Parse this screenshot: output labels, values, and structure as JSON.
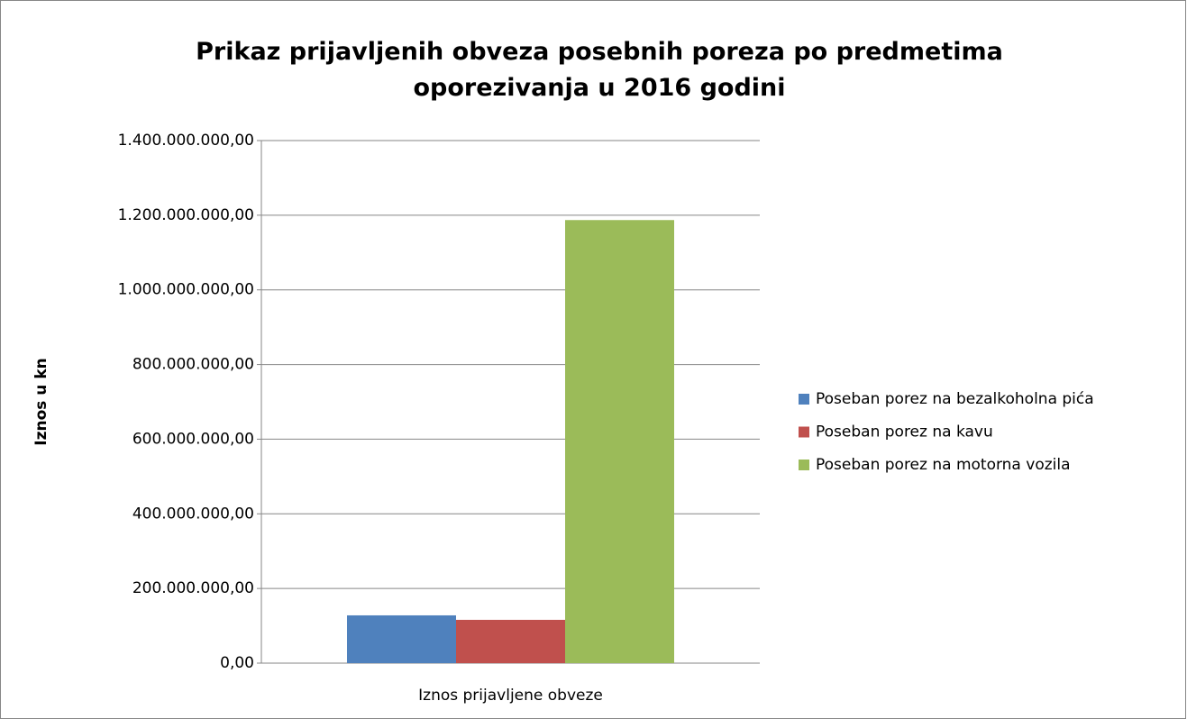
{
  "chart_data": {
    "type": "bar",
    "title": "Prikaz prijavljenih obveza posebnih poreza po predmetima oporezivanja u 2016 godini",
    "y_label": "Iznos u kn",
    "categories": [
      "Iznos prijavljene obveze"
    ],
    "series": [
      {
        "name": "Poseban porez na bezalkoholna pića",
        "color": "#4f81bd",
        "values": [
          128000000
        ]
      },
      {
        "name": "Poseban porez na kavu",
        "color": "#c0504d",
        "values": [
          116000000
        ]
      },
      {
        "name": "Poseban porez na motorna vozila",
        "color": "#9bbb59",
        "values": [
          1187000000
        ]
      }
    ],
    "ylim": [
      0,
      1400000000
    ],
    "yticks": [
      {
        "value": 0,
        "label": "0,00"
      },
      {
        "value": 200000000,
        "label": "200.000.000,00"
      },
      {
        "value": 400000000,
        "label": "400.000.000,00"
      },
      {
        "value": 600000000,
        "label": "600.000.000,00"
      },
      {
        "value": 800000000,
        "label": "800.000.000,00"
      },
      {
        "value": 1000000000,
        "label": "1.000.000.000,00"
      },
      {
        "value": 1200000000,
        "label": "1.200.000.000,00"
      },
      {
        "value": 1400000000,
        "label": "1.400.000.000,00"
      }
    ],
    "grid": true,
    "legend": "right"
  }
}
